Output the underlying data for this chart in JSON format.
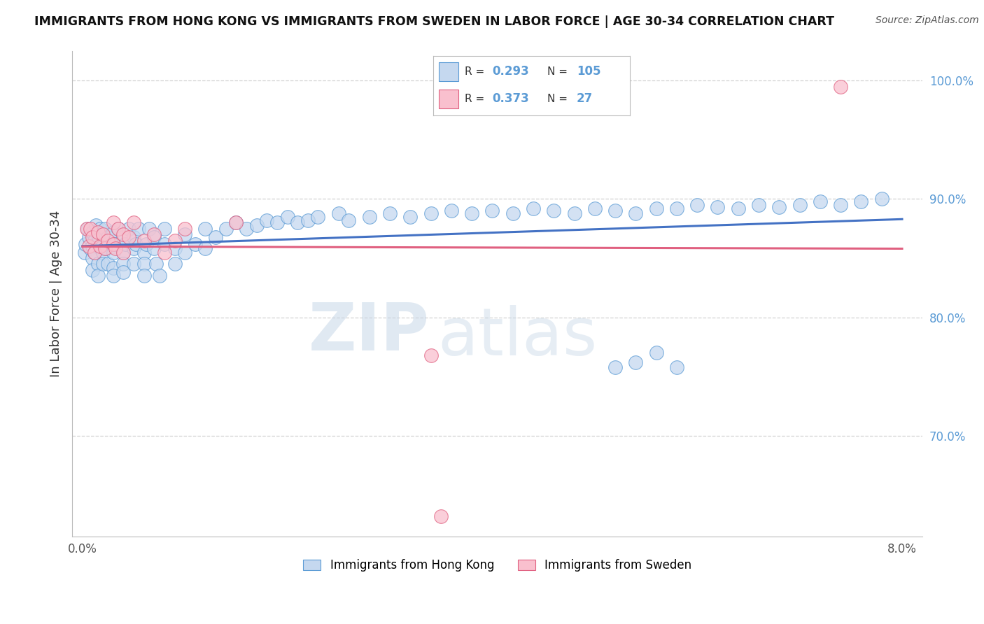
{
  "title": "IMMIGRANTS FROM HONG KONG VS IMMIGRANTS FROM SWEDEN IN LABOR FORCE | AGE 30-34 CORRELATION CHART",
  "source": "Source: ZipAtlas.com",
  "ylabel": "In Labor Force | Age 30-34",
  "xlim": [
    -0.001,
    0.082
  ],
  "ylim": [
    0.615,
    1.025
  ],
  "xtick_positions": [
    0.0,
    0.02,
    0.04,
    0.06,
    0.08
  ],
  "xticklabels": [
    "0.0%",
    "",
    "",
    "",
    "8.0%"
  ],
  "ytick_positions": [
    0.7,
    0.8,
    0.9,
    1.0
  ],
  "ytick_labels": [
    "70.0%",
    "80.0%",
    "90.0%",
    "100.0%"
  ],
  "hk_R": 0.293,
  "hk_N": 105,
  "sw_R": 0.373,
  "sw_N": 27,
  "hk_face_color": "#c5d8ef",
  "hk_edge_color": "#5b9bd5",
  "sw_face_color": "#f9c0ce",
  "sw_edge_color": "#e06080",
  "hk_line_color": "#4472c4",
  "sw_line_color": "#e06080",
  "legend_label_hk": "Immigrants from Hong Kong",
  "legend_label_sw": "Immigrants from Sweden",
  "watermark_zip": "ZIP",
  "watermark_atlas": "atlas",
  "background_color": "#ffffff",
  "grid_color": "#cccccc",
  "hk_x": [
    0.0002,
    0.0003,
    0.0005,
    0.0006,
    0.0008,
    0.001,
    0.001,
    0.001,
    0.001,
    0.0012,
    0.0012,
    0.0013,
    0.0015,
    0.0015,
    0.0015,
    0.0016,
    0.0017,
    0.0018,
    0.002,
    0.002,
    0.002,
    0.002,
    0.0022,
    0.0023,
    0.0025,
    0.0025,
    0.003,
    0.003,
    0.003,
    0.003,
    0.003,
    0.0032,
    0.0035,
    0.004,
    0.004,
    0.004,
    0.004,
    0.0042,
    0.0045,
    0.005,
    0.005,
    0.005,
    0.0052,
    0.0055,
    0.006,
    0.006,
    0.006,
    0.0062,
    0.0065,
    0.007,
    0.007,
    0.0072,
    0.0075,
    0.008,
    0.008,
    0.009,
    0.009,
    0.01,
    0.01,
    0.011,
    0.012,
    0.012,
    0.013,
    0.014,
    0.015,
    0.016,
    0.017,
    0.018,
    0.019,
    0.02,
    0.021,
    0.022,
    0.023,
    0.025,
    0.026,
    0.028,
    0.03,
    0.032,
    0.034,
    0.036,
    0.038,
    0.04,
    0.042,
    0.044,
    0.046,
    0.048,
    0.05,
    0.052,
    0.054,
    0.056,
    0.058,
    0.06,
    0.062,
    0.064,
    0.066,
    0.068,
    0.07,
    0.072,
    0.074,
    0.076,
    0.078,
    0.052,
    0.054,
    0.056,
    0.058
  ],
  "hk_y": [
    0.855,
    0.862,
    0.875,
    0.868,
    0.858,
    0.872,
    0.86,
    0.85,
    0.84,
    0.865,
    0.855,
    0.878,
    0.862,
    0.845,
    0.835,
    0.868,
    0.875,
    0.858,
    0.87,
    0.855,
    0.845,
    0.862,
    0.875,
    0.858,
    0.868,
    0.845,
    0.872,
    0.86,
    0.855,
    0.842,
    0.835,
    0.862,
    0.875,
    0.868,
    0.855,
    0.845,
    0.838,
    0.862,
    0.875,
    0.858,
    0.868,
    0.845,
    0.862,
    0.875,
    0.855,
    0.845,
    0.835,
    0.862,
    0.875,
    0.858,
    0.868,
    0.845,
    0.835,
    0.862,
    0.875,
    0.858,
    0.845,
    0.87,
    0.855,
    0.862,
    0.875,
    0.858,
    0.868,
    0.875,
    0.88,
    0.875,
    0.878,
    0.882,
    0.88,
    0.885,
    0.88,
    0.882,
    0.885,
    0.888,
    0.882,
    0.885,
    0.888,
    0.885,
    0.888,
    0.89,
    0.888,
    0.89,
    0.888,
    0.892,
    0.89,
    0.888,
    0.892,
    0.89,
    0.888,
    0.892,
    0.892,
    0.895,
    0.893,
    0.892,
    0.895,
    0.893,
    0.895,
    0.898,
    0.895,
    0.898,
    0.9,
    0.758,
    0.762,
    0.77,
    0.758
  ],
  "sw_x": [
    0.0004,
    0.0006,
    0.0008,
    0.001,
    0.0012,
    0.0015,
    0.0017,
    0.002,
    0.0022,
    0.0025,
    0.003,
    0.003,
    0.0032,
    0.0035,
    0.004,
    0.004,
    0.0045,
    0.005,
    0.006,
    0.007,
    0.008,
    0.009,
    0.01,
    0.015,
    0.034,
    0.035,
    0.074
  ],
  "sw_y": [
    0.875,
    0.86,
    0.875,
    0.868,
    0.855,
    0.872,
    0.86,
    0.87,
    0.858,
    0.865,
    0.88,
    0.862,
    0.858,
    0.875,
    0.87,
    0.855,
    0.868,
    0.88,
    0.865,
    0.87,
    0.855,
    0.865,
    0.875,
    0.88,
    0.768,
    0.632,
    0.995
  ]
}
